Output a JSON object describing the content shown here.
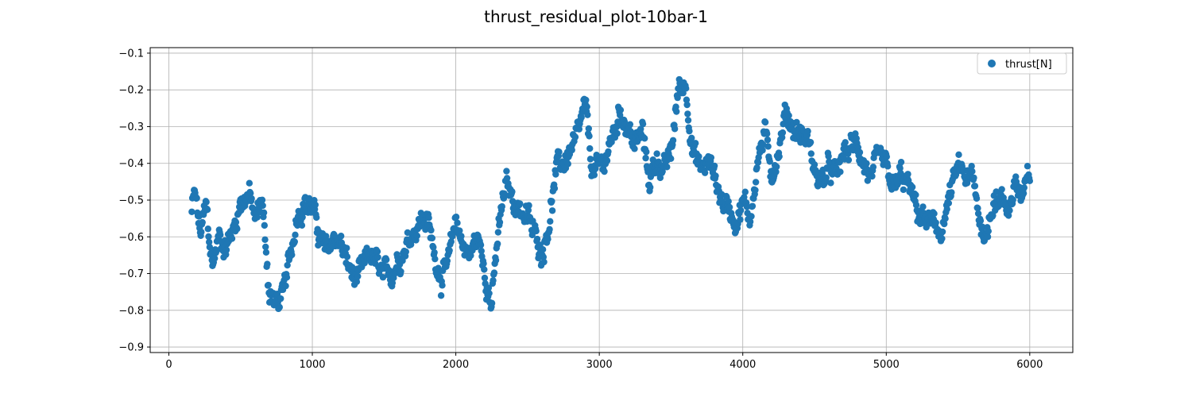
{
  "chart_data": {
    "type": "scatter",
    "title": "thrust_residual_plot-10bar-1",
    "xlabel": "",
    "ylabel": "",
    "xlim": [
      -130,
      6300
    ],
    "ylim": [
      -0.915,
      -0.085
    ],
    "xticks": [
      0,
      1000,
      2000,
      3000,
      4000,
      5000,
      6000
    ],
    "yticks": [
      -0.9,
      -0.8,
      -0.7,
      -0.6,
      -0.5,
      -0.4,
      -0.3,
      -0.2,
      -0.1
    ],
    "xtick_labels": [
      "0",
      "1000",
      "2000",
      "3000",
      "4000",
      "5000",
      "6000"
    ],
    "ytick_labels": [
      "−0.9",
      "−0.8",
      "−0.7",
      "−0.6",
      "−0.5",
      "−0.4",
      "−0.3",
      "−0.2",
      "−0.1"
    ],
    "grid": true,
    "legend_position": "top-right",
    "series": [
      {
        "name": "thrust[N]",
        "color": "#1f77b4",
        "x_range": [
          160,
          6000
        ],
        "trend_x": [
          160,
          180,
          220,
          260,
          300,
          350,
          400,
          450,
          500,
          560,
          600,
          650,
          700,
          750,
          800,
          850,
          900,
          950,
          1000,
          1050,
          1100,
          1150,
          1200,
          1250,
          1300,
          1350,
          1400,
          1450,
          1500,
          1550,
          1600,
          1650,
          1700,
          1750,
          1800,
          1850,
          1900,
          1950,
          2000,
          2050,
          2100,
          2150,
          2200,
          2250,
          2300,
          2350,
          2400,
          2450,
          2500,
          2550,
          2600,
          2650,
          2700,
          2750,
          2800,
          2850,
          2900,
          2950,
          3000,
          3050,
          3100,
          3150,
          3200,
          3250,
          3300,
          3350,
          3400,
          3450,
          3500,
          3550,
          3600,
          3650,
          3700,
          3750,
          3800,
          3850,
          3900,
          3950,
          4000,
          4050,
          4100,
          4150,
          4200,
          4250,
          4300,
          4350,
          4400,
          4450,
          4500,
          4550,
          4600,
          4650,
          4700,
          4750,
          4800,
          4850,
          4900,
          4950,
          5000,
          5050,
          5100,
          5150,
          5200,
          5250,
          5300,
          5350,
          5400,
          5450,
          5500,
          5550,
          5600,
          5650,
          5700,
          5750,
          5800,
          5850,
          5900,
          5950,
          6000
        ],
        "trend_y": [
          -0.53,
          -0.48,
          -0.6,
          -0.52,
          -0.68,
          -0.6,
          -0.62,
          -0.58,
          -0.5,
          -0.48,
          -0.56,
          -0.5,
          -0.75,
          -0.78,
          -0.76,
          -0.65,
          -0.52,
          -0.5,
          -0.52,
          -0.6,
          -0.65,
          -0.6,
          -0.62,
          -0.68,
          -0.72,
          -0.7,
          -0.65,
          -0.68,
          -0.72,
          -0.7,
          -0.65,
          -0.62,
          -0.58,
          -0.55,
          -0.55,
          -0.65,
          -0.7,
          -0.68,
          -0.55,
          -0.62,
          -0.65,
          -0.6,
          -0.68,
          -0.78,
          -0.58,
          -0.46,
          -0.5,
          -0.52,
          -0.55,
          -0.6,
          -0.64,
          -0.55,
          -0.42,
          -0.4,
          -0.36,
          -0.34,
          -0.25,
          -0.42,
          -0.42,
          -0.38,
          -0.32,
          -0.25,
          -0.3,
          -0.35,
          -0.32,
          -0.45,
          -0.38,
          -0.42,
          -0.38,
          -0.2,
          -0.18,
          -0.35,
          -0.42,
          -0.4,
          -0.42,
          -0.5,
          -0.52,
          -0.55,
          -0.5,
          -0.55,
          -0.4,
          -0.32,
          -0.42,
          -0.36,
          -0.26,
          -0.3,
          -0.32,
          -0.33,
          -0.42,
          -0.45,
          -0.42,
          -0.44,
          -0.38,
          -0.36,
          -0.35,
          -0.4,
          -0.45,
          -0.4,
          -0.42,
          -0.48,
          -0.44,
          -0.46,
          -0.52,
          -0.55,
          -0.56,
          -0.6,
          -0.56,
          -0.48,
          -0.42,
          -0.44,
          -0.45,
          -0.55,
          -0.6,
          -0.48,
          -0.5,
          -0.52,
          -0.45,
          -0.5,
          -0.44
        ],
        "spread": 0.035,
        "point_count": 1500
      }
    ]
  }
}
